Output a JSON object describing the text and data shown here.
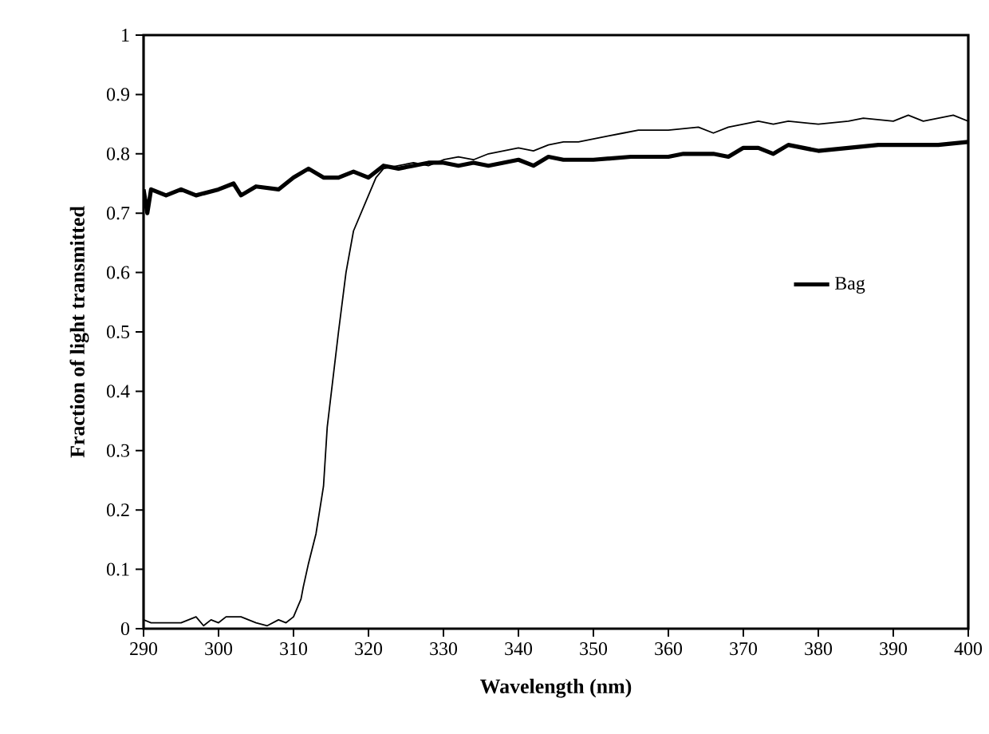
{
  "chart_data": {
    "type": "line",
    "xlabel": "Wavelength (nm)",
    "ylabel": "Fraction of  light transmitted",
    "xlim": [
      290,
      400
    ],
    "ylim": [
      0,
      1
    ],
    "xticks": [
      290,
      300,
      310,
      320,
      330,
      340,
      350,
      360,
      370,
      380,
      390,
      400
    ],
    "yticks": [
      0,
      0.1,
      0.2,
      0.3,
      0.4,
      0.5,
      0.6,
      0.7,
      0.8,
      0.9,
      1
    ],
    "grid": false,
    "legend": "right",
    "marker": "none",
    "line_style": "solid",
    "series": [
      {
        "name": "Bag",
        "color": "#000000",
        "x": [
          290,
          290.5,
          291,
          293,
          295,
          297,
          300,
          302,
          303,
          305,
          308,
          310,
          312,
          314,
          316,
          318,
          320,
          322,
          324,
          326,
          328,
          330,
          332,
          334,
          336,
          338,
          340,
          342,
          344,
          346,
          350,
          355,
          360,
          362,
          366,
          368,
          370,
          372,
          374,
          376,
          380,
          384,
          388,
          392,
          396,
          400
        ],
        "values": [
          0.74,
          0.7,
          0.74,
          0.73,
          0.74,
          0.73,
          0.74,
          0.75,
          0.73,
          0.745,
          0.74,
          0.76,
          0.775,
          0.76,
          0.76,
          0.77,
          0.76,
          0.78,
          0.775,
          0.78,
          0.785,
          0.785,
          0.78,
          0.785,
          0.78,
          0.785,
          0.79,
          0.78,
          0.795,
          0.79,
          0.79,
          0.795,
          0.795,
          0.8,
          0.8,
          0.795,
          0.81,
          0.81,
          0.8,
          0.815,
          0.805,
          0.81,
          0.815,
          0.815,
          0.815,
          0.82
        ]
      },
      {
        "color": "#000000",
        "x": [
          290,
          291,
          295,
          297,
          298,
          299,
          300,
          301,
          303,
          305,
          306.5,
          308,
          309,
          310,
          311,
          311.3,
          312,
          313,
          314,
          314.5,
          316,
          317,
          318,
          319,
          320,
          321,
          322,
          324,
          326,
          328,
          330,
          332,
          334,
          336,
          338,
          340,
          342,
          344,
          346,
          348,
          350,
          352,
          354,
          356,
          360,
          364,
          366,
          368,
          372,
          374,
          376,
          380,
          384,
          386,
          390,
          392,
          394,
          396,
          398,
          400
        ],
        "values": [
          0.015,
          0.01,
          0.01,
          0.02,
          0.005,
          0.015,
          0.01,
          0.02,
          0.02,
          0.01,
          0.005,
          0.015,
          0.01,
          0.02,
          0.05,
          0.07,
          0.11,
          0.16,
          0.24,
          0.34,
          0.5,
          0.6,
          0.67,
          0.7,
          0.73,
          0.76,
          0.775,
          0.78,
          0.785,
          0.78,
          0.79,
          0.795,
          0.79,
          0.8,
          0.805,
          0.81,
          0.805,
          0.815,
          0.82,
          0.82,
          0.825,
          0.83,
          0.835,
          0.84,
          0.84,
          0.845,
          0.835,
          0.845,
          0.855,
          0.85,
          0.855,
          0.85,
          0.855,
          0.86,
          0.855,
          0.865,
          0.855,
          0.86,
          0.865,
          0.855
        ]
      }
    ]
  }
}
